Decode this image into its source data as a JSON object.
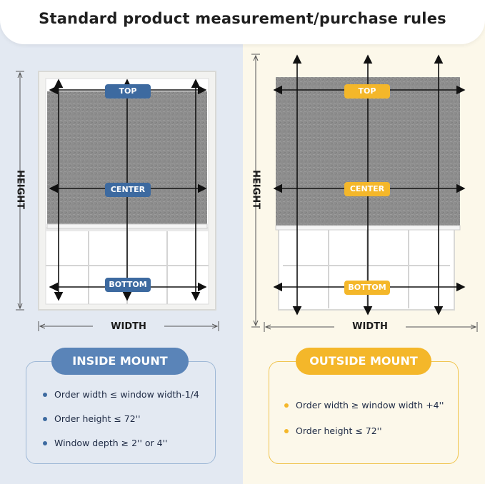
{
  "header": {
    "title": "Standard product measurement/purchase rules"
  },
  "inside": {
    "labels": {
      "top": "TOP",
      "center": "CENTER",
      "bottom": "BOTTOM"
    },
    "height_label": "HEIGHT",
    "width_label": "WIDTH",
    "mount_title": "INSIDE MOUNT",
    "rules": [
      "Order width ≤ window width-1/4",
      "Order height ≤ 72''",
      "Window depth ≥ 2'' or 4''"
    ]
  },
  "outside": {
    "labels": {
      "top": "TOP",
      "center": "CENTER",
      "bottom": "BOTTOM"
    },
    "height_label": "HEIGHT",
    "width_label": "WIDTH",
    "mount_title": "OUTSIDE MOUNT",
    "rules": [
      "Order width ≥ window width +4''",
      "Order height ≤ 72''"
    ]
  },
  "colors": {
    "blue_accent": "#3d6aa0",
    "yellow_accent": "#f4b72a",
    "left_bg": "#e3e9f2",
    "right_bg": "#fcf8ea",
    "fabric": "#8d8d8d"
  }
}
